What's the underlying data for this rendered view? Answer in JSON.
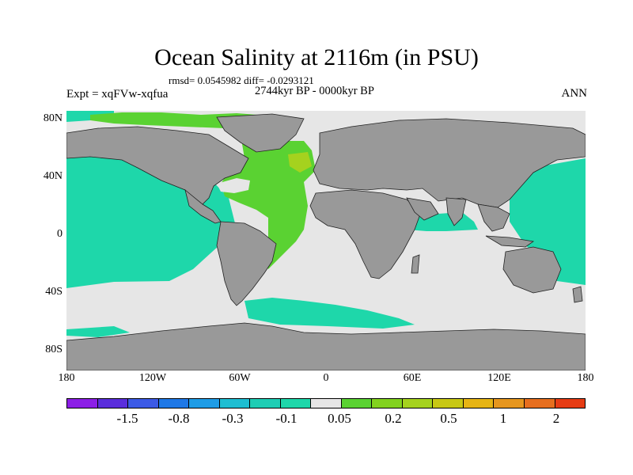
{
  "title": "Ocean Salinity at 2116m (in PSU)",
  "subtitle_stats": "rmsd= 0.0545982 diff= -0.0293121",
  "subtitle_period": "2744kyr BP - 0000kyr BP",
  "experiment_label": "Expt = xqFVw-xqfua",
  "season_label": "ANN",
  "lat_ticks": [
    "80N",
    "40N",
    "0",
    "40S",
    "80S"
  ],
  "lon_ticks": [
    "180",
    "120W",
    "60W",
    "0",
    "60E",
    "120E",
    "180"
  ],
  "colorbar": {
    "colors": [
      "#8c1ee6",
      "#5a2ddc",
      "#3c5ae6",
      "#1e78e6",
      "#1e9ce6",
      "#1ebed2",
      "#1ecdb4",
      "#1ed7aa",
      "#e6e6e6",
      "#5ad232",
      "#82d21e",
      "#a5d21e",
      "#c8c814",
      "#e6b414",
      "#e6961e",
      "#e66e1e",
      "#e63c14"
    ],
    "labels": [
      "-1.5",
      "-0.8",
      "-0.3",
      "-0.1",
      "0.05",
      "0.2",
      "0.5",
      "1",
      "2"
    ]
  },
  "map_colors": {
    "land": "#999999",
    "ocean_teal": "#1ed7aa",
    "ocean_neutral": "#e6e6e6",
    "ocean_green": "#5ad232",
    "ocean_yellowgreen": "#a5d21e",
    "ocean_blue": "#1e9ce6"
  }
}
